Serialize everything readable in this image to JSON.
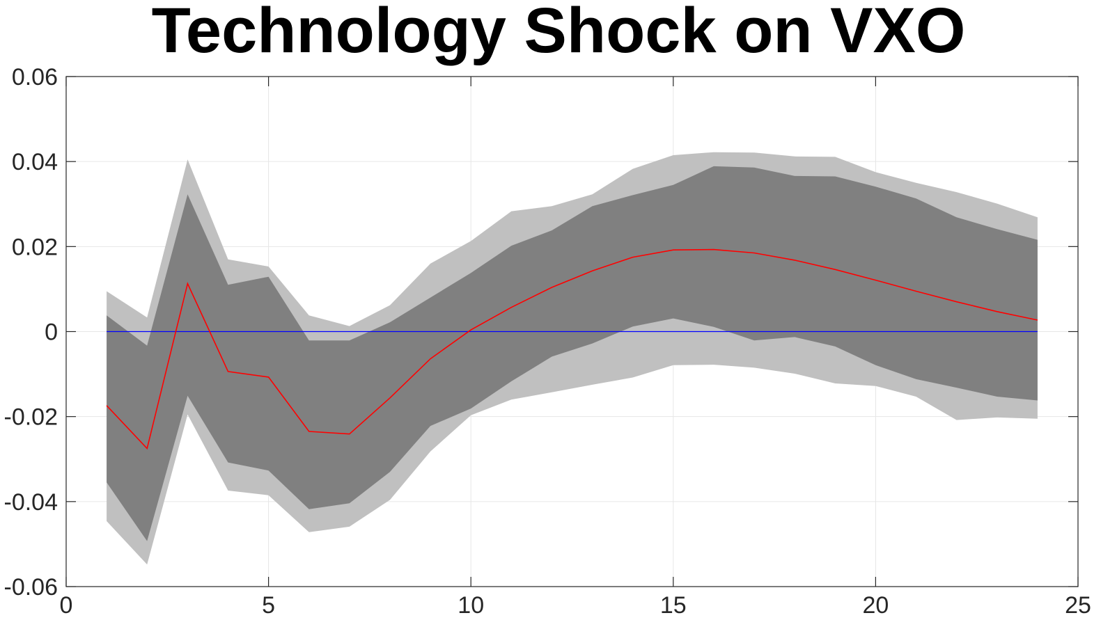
{
  "chart_data": {
    "type": "line",
    "title": "Technology Shock on VXO",
    "xlabel": "",
    "ylabel": "",
    "xlim": [
      0,
      25
    ],
    "ylim": [
      -0.06,
      0.06
    ],
    "xticks": [
      0,
      5,
      10,
      15,
      20,
      25
    ],
    "yticks": [
      -0.06,
      -0.04,
      -0.02,
      0,
      0.02,
      0.04,
      0.06
    ],
    "ytick_labels": [
      "-0.06",
      "-0.04",
      "-0.02",
      "0",
      "0.02",
      "0.04",
      "0.06"
    ],
    "xtick_labels": [
      "0",
      "5",
      "10",
      "15",
      "20",
      "25"
    ],
    "grid": true,
    "x": [
      1,
      2,
      3,
      4,
      5,
      6,
      7,
      8,
      9,
      10,
      11,
      12,
      13,
      14,
      15,
      16,
      17,
      18,
      19,
      20,
      21,
      22,
      23,
      24
    ],
    "outer_band_upper": [
      0.0095,
      0.0033,
      0.0405,
      0.017,
      0.0153,
      0.0038,
      0.0013,
      0.0062,
      0.016,
      0.0213,
      0.0283,
      0.0295,
      0.0323,
      0.0383,
      0.0415,
      0.0422,
      0.0421,
      0.0412,
      0.0411,
      0.0375,
      0.035,
      0.0328,
      0.0301,
      0.0269
    ],
    "outer_band_lower": [
      -0.0446,
      -0.0548,
      -0.0195,
      -0.0374,
      -0.0385,
      -0.0472,
      -0.0459,
      -0.0396,
      -0.0282,
      -0.0197,
      -0.016,
      -0.0143,
      -0.0125,
      -0.0108,
      -0.0079,
      -0.0078,
      -0.0085,
      -0.0099,
      -0.0122,
      -0.0128,
      -0.0153,
      -0.0208,
      -0.0202,
      -0.0205
    ],
    "inner_band_upper": [
      0.0038,
      -0.0033,
      0.0323,
      0.011,
      0.0129,
      -0.0021,
      -0.0021,
      0.0022,
      0.008,
      0.0138,
      0.0202,
      0.0238,
      0.0295,
      0.0321,
      0.0345,
      0.0389,
      0.0386,
      0.0366,
      0.0365,
      0.0341,
      0.0313,
      0.0269,
      0.0241,
      0.0216
    ],
    "inner_band_lower": [
      -0.0355,
      -0.0493,
      -0.0151,
      -0.0308,
      -0.0327,
      -0.0418,
      -0.0404,
      -0.033,
      -0.0222,
      -0.0181,
      -0.0117,
      -0.0059,
      -0.0028,
      0.0012,
      0.0031,
      0.0011,
      -0.0021,
      -0.0013,
      -0.0035,
      -0.0079,
      -0.0112,
      -0.0132,
      -0.0153,
      -0.0162
    ],
    "series": [
      {
        "values": [
          -0.0174,
          -0.0275,
          0.0113,
          -0.0094,
          -0.0107,
          -0.0235,
          -0.0241,
          -0.0156,
          -0.0064,
          0.0004,
          0.0057,
          0.0104,
          0.0143,
          0.0175,
          0.0192,
          0.0193,
          0.0185,
          0.0168,
          0.0146,
          0.0121,
          0.0095,
          0.007,
          0.0047,
          0.0027
        ]
      }
    ],
    "zero_line": 0,
    "colors": {
      "outer_band": "#c0c0c0",
      "inner_band": "#808080",
      "response_line": "#ff0000",
      "zero_line": "#0000ff",
      "grid": "#e6e6e6",
      "axis": "#262626"
    }
  }
}
